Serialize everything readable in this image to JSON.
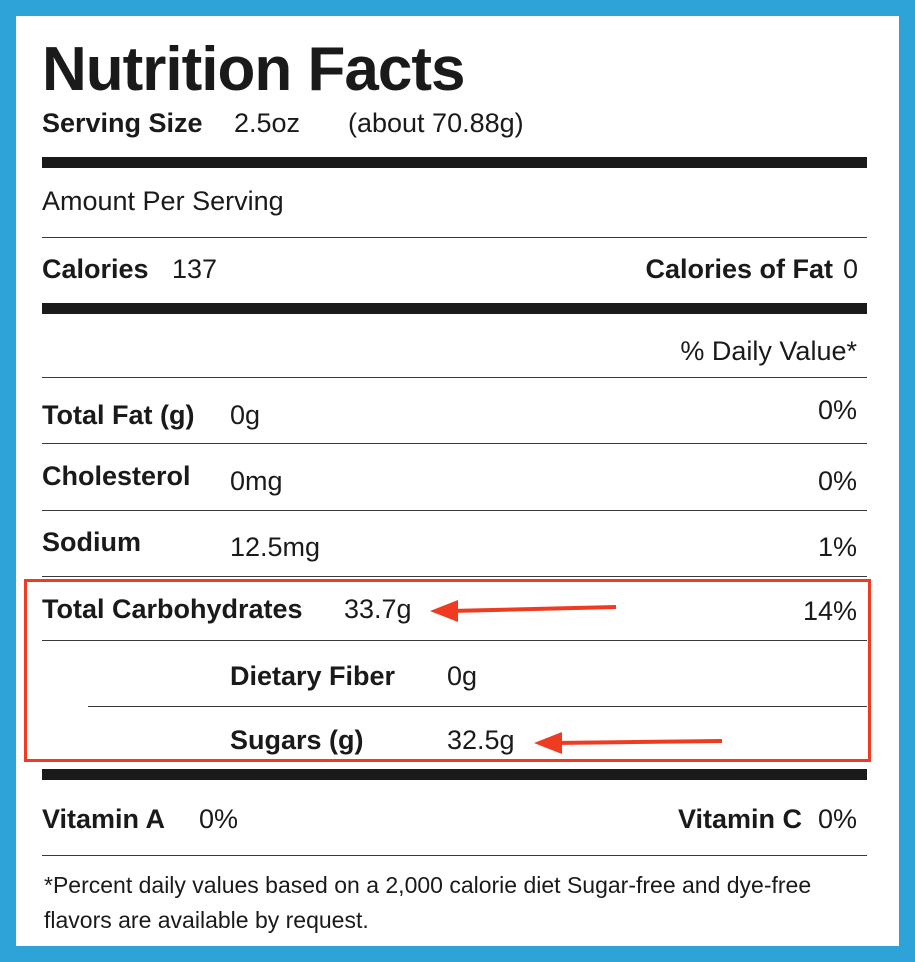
{
  "label": {
    "title": "Nutrition Facts",
    "serving_size_label": "Serving Size",
    "serving_size_value": "2.5oz",
    "serving_size_grams": "(about 70.88g)",
    "amount_per_serving": "Amount Per Serving",
    "calories_label": "Calories",
    "calories_value": "137",
    "calories_fat_label": "Calories of Fat",
    "calories_fat_value": "0",
    "daily_value_header": "% Daily Value*"
  },
  "nutrients": [
    {
      "name": "Total Fat (g)",
      "amount": "0g",
      "dv": "0%"
    },
    {
      "name": "Cholesterol",
      "amount": "0mg",
      "dv": "0%"
    },
    {
      "name": "Sodium",
      "amount": "12.5mg",
      "dv": "1%"
    },
    {
      "name": "Total Carbohydrates",
      "amount": "33.7g",
      "dv": "14%"
    },
    {
      "name": "Dietary Fiber",
      "amount": "0g"
    },
    {
      "name": "Sugars (g)",
      "amount": "32.5g"
    }
  ],
  "vitamins": {
    "a_label": "Vitamin A",
    "a_value": "0%",
    "c_label": "Vitamin C",
    "c_value": "0%"
  },
  "footnote": {
    "line1": "*Percent daily values based on a 2,000 calorie diet Sugar-free and dye-free",
    "line2": "flavors are available by request."
  },
  "colors": {
    "frame": "#2ea3d8",
    "highlight": "#ee3b22",
    "text": "#1a1a1a"
  }
}
